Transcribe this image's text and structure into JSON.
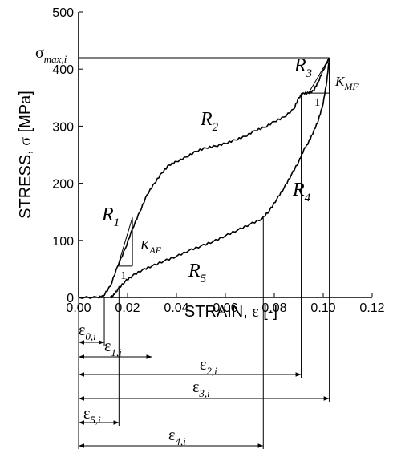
{
  "chart_data": {
    "type": "line",
    "xlabel_prefix": "STRAIN, ",
    "xlabel_symbol": "ε",
    "xlabel_unit": " [-]",
    "ylabel_prefix": "STRESS, ",
    "ylabel_symbol": "σ",
    "ylabel_unit": " [MPa]",
    "xlim": [
      0.0,
      0.12
    ],
    "ylim": [
      0,
      500
    ],
    "xticks": [
      0.0,
      0.02,
      0.04,
      0.06,
      0.08,
      0.1,
      0.12
    ],
    "xtick_labels": [
      "0.00",
      "0.02",
      "0.04",
      "0.06",
      "0.08",
      "0.10",
      "0.12"
    ],
    "yticks": [
      0,
      100,
      200,
      300,
      400,
      500
    ],
    "ytick_labels": [
      "0",
      "100",
      "200",
      "300",
      "400",
      "500"
    ],
    "grid": false,
    "series": [
      {
        "key": "loading",
        "points": [
          [
            0.0,
            0
          ],
          [
            0.008,
            0
          ],
          [
            0.01,
            2
          ],
          [
            0.013,
            20
          ],
          [
            0.016,
            55
          ],
          [
            0.019,
            85
          ],
          [
            0.022,
            120
          ],
          [
            0.025,
            150
          ],
          [
            0.028,
            180
          ],
          [
            0.031,
            200
          ],
          [
            0.034,
            218
          ],
          [
            0.037,
            232
          ],
          [
            0.04,
            238
          ],
          [
            0.044,
            246
          ],
          [
            0.048,
            256
          ],
          [
            0.052,
            262
          ],
          [
            0.056,
            265
          ],
          [
            0.06,
            270
          ],
          [
            0.064,
            276
          ],
          [
            0.068,
            282
          ],
          [
            0.072,
            292
          ],
          [
            0.076,
            298
          ],
          [
            0.08,
            308
          ],
          [
            0.084,
            316
          ],
          [
            0.088,
            330
          ],
          [
            0.09,
            350
          ],
          [
            0.092,
            358
          ],
          [
            0.094,
            358
          ],
          [
            0.096,
            362
          ],
          [
            0.098,
            378
          ],
          [
            0.1,
            398
          ],
          [
            0.1025,
            420
          ]
        ]
      },
      {
        "key": "unloading",
        "points": [
          [
            0.1025,
            420
          ],
          [
            0.1015,
            380
          ],
          [
            0.1,
            340
          ],
          [
            0.098,
            310
          ],
          [
            0.096,
            290
          ],
          [
            0.094,
            272
          ],
          [
            0.092,
            258
          ],
          [
            0.09,
            238
          ],
          [
            0.087,
            215
          ],
          [
            0.084,
            192
          ],
          [
            0.081,
            172
          ],
          [
            0.078,
            152
          ],
          [
            0.075,
            138
          ],
          [
            0.07,
            128
          ],
          [
            0.065,
            118
          ],
          [
            0.06,
            108
          ],
          [
            0.055,
            98
          ],
          [
            0.05,
            90
          ],
          [
            0.045,
            82
          ],
          [
            0.04,
            72
          ],
          [
            0.035,
            64
          ],
          [
            0.03,
            55
          ],
          [
            0.026,
            48
          ],
          [
            0.022,
            38
          ],
          [
            0.019,
            28
          ],
          [
            0.016,
            14
          ],
          [
            0.014,
            2
          ],
          [
            0.013,
            0
          ]
        ]
      }
    ],
    "sigma_max_line": {
      "value": 420,
      "x_from": 0.0,
      "x_to": 0.1025
    },
    "slope_triangles": [
      {
        "key": "K_AF",
        "x0": 0.016,
        "x1": 0.022,
        "y0": 55,
        "y1": 140,
        "one_label": "1"
      },
      {
        "key": "K_MF",
        "x0": 0.094,
        "x1": 0.1025,
        "y0": 358,
        "y1": 420,
        "one_label": "1"
      }
    ],
    "drop_lines": [
      {
        "x": 0.03,
        "y_top": 200,
        "row": 1
      },
      {
        "x": 0.091,
        "y_top": 358,
        "row": 2
      },
      {
        "x": 0.1025,
        "y_top": 420,
        "row": 3
      },
      {
        "x": 0.0165,
        "y_top": 20,
        "row": 4
      },
      {
        "x": 0.0755,
        "y_top": 140,
        "row": 5
      },
      {
        "x": 0.0105,
        "y_top": 0,
        "row": 0
      }
    ],
    "annotations": {
      "sigma_max": {
        "base": "σ",
        "sub": "max,i"
      },
      "K_AF": {
        "base": "K",
        "sub": "AF"
      },
      "K_MF": {
        "base": "K",
        "sub": "MF"
      },
      "regions": [
        {
          "base": "R",
          "sub": "1"
        },
        {
          "base": "R",
          "sub": "2"
        },
        {
          "base": "R",
          "sub": "3"
        },
        {
          "base": "R",
          "sub": "4"
        },
        {
          "base": "R",
          "sub": "5"
        }
      ],
      "strains": [
        {
          "base": "ε",
          "sub": "0,i"
        },
        {
          "base": "ε",
          "sub": "1,i"
        },
        {
          "base": "ε",
          "sub": "2,i"
        },
        {
          "base": "ε",
          "sub": "3,i"
        },
        {
          "base": "ε",
          "sub": "5,i"
        },
        {
          "base": "ε",
          "sub": "4,i"
        }
      ]
    }
  }
}
